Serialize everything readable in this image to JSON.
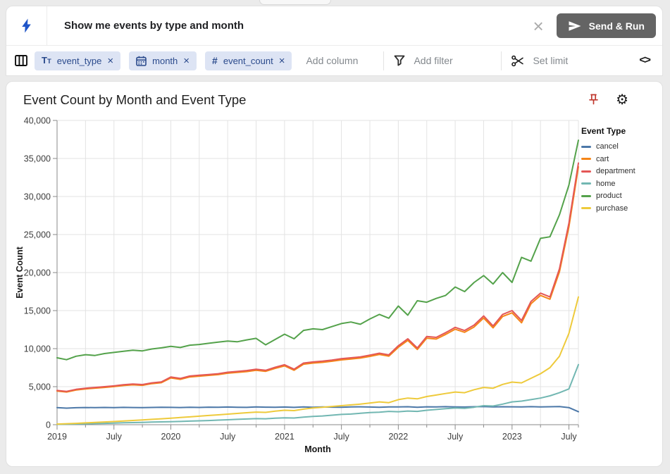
{
  "query_bar": {
    "prompt": "Show me events by type and month",
    "send_button": "Send & Run"
  },
  "toolbar": {
    "columns": [
      {
        "name": "event_type",
        "type": "text"
      },
      {
        "name": "month",
        "type": "date"
      },
      {
        "name": "event_count",
        "type": "number"
      }
    ],
    "add_column_placeholder": "Add column",
    "add_filter_placeholder": "Add filter",
    "set_limit_placeholder": "Set limit"
  },
  "icons": {
    "close": "×",
    "chip_remove": "×",
    "gear": "⚙",
    "code": "<>",
    "number": "#",
    "text_type_large": "T",
    "text_type_small": "T"
  },
  "colors": {
    "accent_blue": "#1f55c8",
    "chip_bg": "#dde4f4",
    "chip_text": "#2a4a8c",
    "send_button_bg": "#646464",
    "pin_red": "#c0392f"
  },
  "chart": {
    "title": "Event Count by Month and Event Type"
  },
  "chart_data": {
    "type": "line",
    "title": "Event Count by Month and Event Type",
    "xlabel": "Month",
    "ylabel": "Event Count",
    "ylim": [
      0,
      40000
    ],
    "y_tick_step": 5000,
    "x_start": "2019-01",
    "x_end": "2023-08",
    "x_tick_labels": [
      "2019",
      "July",
      "2020",
      "July",
      "2021",
      "July",
      "2022",
      "July",
      "2023",
      "July"
    ],
    "grid": true,
    "legend_title": "Event Type",
    "legend_position": "right",
    "series": [
      {
        "name": "cancel",
        "color": "#4c78a8",
        "values": [
          2250,
          2180,
          2230,
          2260,
          2240,
          2270,
          2250,
          2280,
          2260,
          2240,
          2270,
          2290,
          2280,
          2260,
          2300,
          2270,
          2310,
          2290,
          2320,
          2300,
          2280,
          2330,
          2310,
          2290,
          2320,
          2280,
          2330,
          2300,
          2340,
          2310,
          2290,
          2330,
          2350,
          2320,
          2300,
          2340,
          2330,
          2360,
          2300,
          2350,
          2330,
          2370,
          2340,
          2320,
          2360,
          2380,
          2340,
          2360,
          2350,
          2330,
          2370,
          2340,
          2360,
          2380,
          2250,
          1700
        ]
      },
      {
        "name": "cart",
        "color": "#f58518",
        "values": [
          4420,
          4300,
          4560,
          4700,
          4810,
          4900,
          5010,
          5150,
          5240,
          5180,
          5400,
          5520,
          6150,
          5960,
          6280,
          6380,
          6480,
          6580,
          6770,
          6870,
          6980,
          7160,
          7020,
          7410,
          7730,
          7160,
          7950,
          8100,
          8190,
          8340,
          8520,
          8640,
          8760,
          8980,
          9230,
          9010,
          10180,
          11080,
          9890,
          11380,
          11260,
          11870,
          12560,
          12150,
          12850,
          14030,
          12730,
          14230,
          14700,
          13400,
          15900,
          17000,
          16500,
          20100,
          26000,
          33900
        ]
      },
      {
        "name": "department",
        "color": "#e45756",
        "values": [
          4500,
          4380,
          4650,
          4800,
          4900,
          5000,
          5100,
          5250,
          5350,
          5280,
          5500,
          5620,
          6280,
          6080,
          6400,
          6500,
          6600,
          6700,
          6900,
          7000,
          7120,
          7300,
          7150,
          7550,
          7880,
          7300,
          8100,
          8250,
          8350,
          8500,
          8680,
          8800,
          8920,
          9150,
          9400,
          9180,
          10380,
          11300,
          10080,
          11600,
          11480,
          12100,
          12800,
          12380,
          13100,
          14300,
          12980,
          14500,
          15000,
          13700,
          16200,
          17300,
          16800,
          20500,
          26500,
          34400
        ]
      },
      {
        "name": "home",
        "color": "#72b7b2",
        "values": [
          50,
          70,
          90,
          120,
          150,
          180,
          210,
          250,
          280,
          310,
          340,
          370,
          400,
          430,
          470,
          510,
          550,
          600,
          650,
          700,
          750,
          800,
          780,
          850,
          900,
          880,
          1000,
          1080,
          1150,
          1250,
          1350,
          1400,
          1500,
          1600,
          1650,
          1750,
          1700,
          1800,
          1750,
          1900,
          2000,
          2100,
          2200,
          2150,
          2300,
          2500,
          2450,
          2700,
          3000,
          3100,
          3300,
          3500,
          3800,
          4200,
          4700,
          7900
        ]
      },
      {
        "name": "product",
        "color": "#54a24b",
        "values": [
          8800,
          8550,
          9000,
          9200,
          9100,
          9350,
          9500,
          9650,
          9800,
          9700,
          9950,
          10100,
          10300,
          10150,
          10450,
          10550,
          10700,
          10850,
          11000,
          10900,
          11150,
          11350,
          10500,
          11200,
          11900,
          11300,
          12400,
          12600,
          12500,
          12900,
          13300,
          13500,
          13200,
          13900,
          14500,
          14000,
          15600,
          14400,
          16300,
          16100,
          16600,
          17000,
          18100,
          17500,
          18700,
          19600,
          18500,
          20000,
          18700,
          22000,
          21500,
          24500,
          24700,
          27600,
          31500,
          37400
        ]
      },
      {
        "name": "purchase",
        "color": "#eeca3b",
        "values": [
          80,
          130,
          180,
          240,
          300,
          360,
          420,
          490,
          560,
          630,
          700,
          780,
          860,
          940,
          1030,
          1120,
          1210,
          1300,
          1390,
          1480,
          1570,
          1660,
          1620,
          1780,
          1900,
          1850,
          2050,
          2200,
          2300,
          2400,
          2500,
          2600,
          2700,
          2850,
          3000,
          2900,
          3300,
          3500,
          3400,
          3700,
          3900,
          4100,
          4300,
          4200,
          4600,
          4900,
          4800,
          5300,
          5600,
          5500,
          6100,
          6700,
          7500,
          9000,
          12000,
          16800
        ]
      }
    ]
  }
}
